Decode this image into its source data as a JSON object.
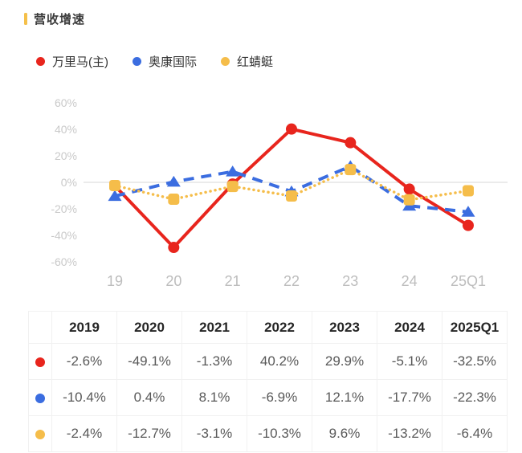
{
  "header": {
    "title": "营收增速",
    "accent_color": "#f5c04a"
  },
  "legend": {
    "items": [
      {
        "label": "万里马(主)",
        "color": "#e8251d"
      },
      {
        "label": "奥康国际",
        "color": "#3b6de0"
      },
      {
        "label": "红蜻蜓",
        "color": "#f5bd4a"
      }
    ]
  },
  "chart_data": {
    "type": "line",
    "title": "营收增速",
    "unit": "%",
    "x": [
      "19",
      "20",
      "21",
      "22",
      "23",
      "24",
      "25Q1"
    ],
    "series": [
      {
        "name": "万里马(主)",
        "color": "#e8251d",
        "line_style": "solid",
        "marker": "circle",
        "values": [
          -2.6,
          -49.1,
          -1.3,
          40.2,
          29.9,
          -5.1,
          -32.5
        ]
      },
      {
        "name": "奥康国际",
        "color": "#3b6de0",
        "line_style": "dashed",
        "marker": "triangle",
        "values": [
          -10.4,
          0.4,
          8.1,
          -6.9,
          12.1,
          -17.7,
          -22.3
        ]
      },
      {
        "name": "红蜻蜓",
        "color": "#f5bd4a",
        "line_style": "dotted",
        "marker": "square",
        "values": [
          -2.4,
          -12.7,
          -3.1,
          -10.3,
          9.6,
          -13.2,
          -6.4
        ]
      }
    ],
    "y_axis": {
      "ticks": [
        "60%",
        "40%",
        "20%",
        "0%",
        "-20%",
        "-40%",
        "-60%"
      ],
      "min": -60,
      "max": 60
    },
    "grid": "zero-line-only",
    "legend_position": "top-left"
  },
  "table": {
    "headers": [
      "2019",
      "2020",
      "2021",
      "2022",
      "2023",
      "2024",
      "2025Q1"
    ],
    "rows": [
      {
        "series": "万里马(主)",
        "color": "#e8251d",
        "values": [
          "-2.6%",
          "-49.1%",
          "-1.3%",
          "40.2%",
          "29.9%",
          "-5.1%",
          "-32.5%"
        ]
      },
      {
        "series": "奥康国际",
        "color": "#3b6de0",
        "values": [
          "-10.4%",
          "0.4%",
          "8.1%",
          "-6.9%",
          "12.1%",
          "-17.7%",
          "-22.3%"
        ]
      },
      {
        "series": "红蜻蜓",
        "color": "#f5bd4a",
        "values": [
          "-2.4%",
          "-12.7%",
          "-3.1%",
          "-10.3%",
          "9.6%",
          "-13.2%",
          "-6.4%"
        ]
      }
    ]
  }
}
